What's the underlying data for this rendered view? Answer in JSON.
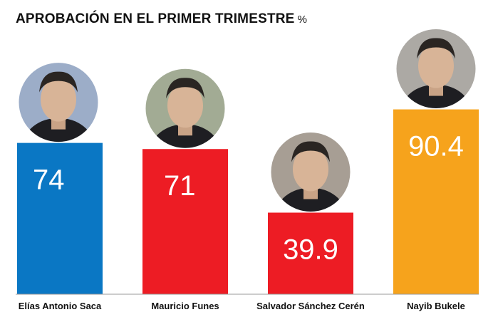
{
  "title": "APROBACIÓN EN EL PRIMER TRIMESTRE",
  "unit": "%",
  "chart_data": {
    "type": "bar",
    "title": "APROBACIÓN EN EL PRIMER TRIMESTRE %",
    "xlabel": "",
    "ylabel": "",
    "categories": [
      "Elías Antonio Saca",
      "Mauricio Funes",
      "Salvador Sánchez Cerén",
      "Nayib Bukele"
    ],
    "values": [
      74,
      71,
      39.9,
      90.4
    ],
    "value_labels": [
      "74",
      "71",
      "39.9",
      "90.4"
    ],
    "colors": [
      "#0a77c4",
      "#ed1c24",
      "#ed1c24",
      "#f6a31c"
    ],
    "ylim": [
      0,
      100
    ],
    "grid": false,
    "legend": "none"
  },
  "portraits": [
    {
      "icon": "portrait-photo-icon",
      "accent": "#2a63c1"
    },
    {
      "icon": "portrait-photo-icon",
      "accent": "#3b5f2a"
    },
    {
      "icon": "portrait-photo-icon",
      "accent": "#4a3a2c"
    },
    {
      "icon": "portrait-photo-icon",
      "accent": "#5a5a5a"
    }
  ]
}
